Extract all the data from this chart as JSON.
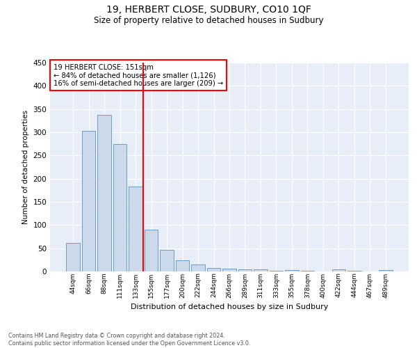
{
  "title": "19, HERBERT CLOSE, SUDBURY, CO10 1QF",
  "subtitle": "Size of property relative to detached houses in Sudbury",
  "xlabel": "Distribution of detached houses by size in Sudbury",
  "ylabel": "Number of detached properties",
  "bar_color": "#ccd9ea",
  "bar_edge_color": "#6b9ec8",
  "background_color": "#e8eef8",
  "categories": [
    "44sqm",
    "66sqm",
    "88sqm",
    "111sqm",
    "133sqm",
    "155sqm",
    "177sqm",
    "200sqm",
    "222sqm",
    "244sqm",
    "266sqm",
    "289sqm",
    "311sqm",
    "333sqm",
    "355sqm",
    "378sqm",
    "400sqm",
    "422sqm",
    "444sqm",
    "467sqm",
    "489sqm"
  ],
  "values": [
    61,
    303,
    337,
    274,
    183,
    90,
    46,
    24,
    15,
    7,
    6,
    4,
    4,
    2,
    3,
    1,
    0,
    4,
    1,
    0,
    3
  ],
  "annotation_line1": "19 HERBERT CLOSE: 151sqm",
  "annotation_line2": "← 84% of detached houses are smaller (1,126)",
  "annotation_line3": "16% of semi-detached houses are larger (209) →",
  "vline_x": 4.5,
  "ylim": [
    0,
    450
  ],
  "yticks": [
    0,
    50,
    100,
    150,
    200,
    250,
    300,
    350,
    400,
    450
  ],
  "footnote": "Contains HM Land Registry data © Crown copyright and database right 2024.\nContains public sector information licensed under the Open Government Licence v3.0.",
  "bar_width": 0.85
}
